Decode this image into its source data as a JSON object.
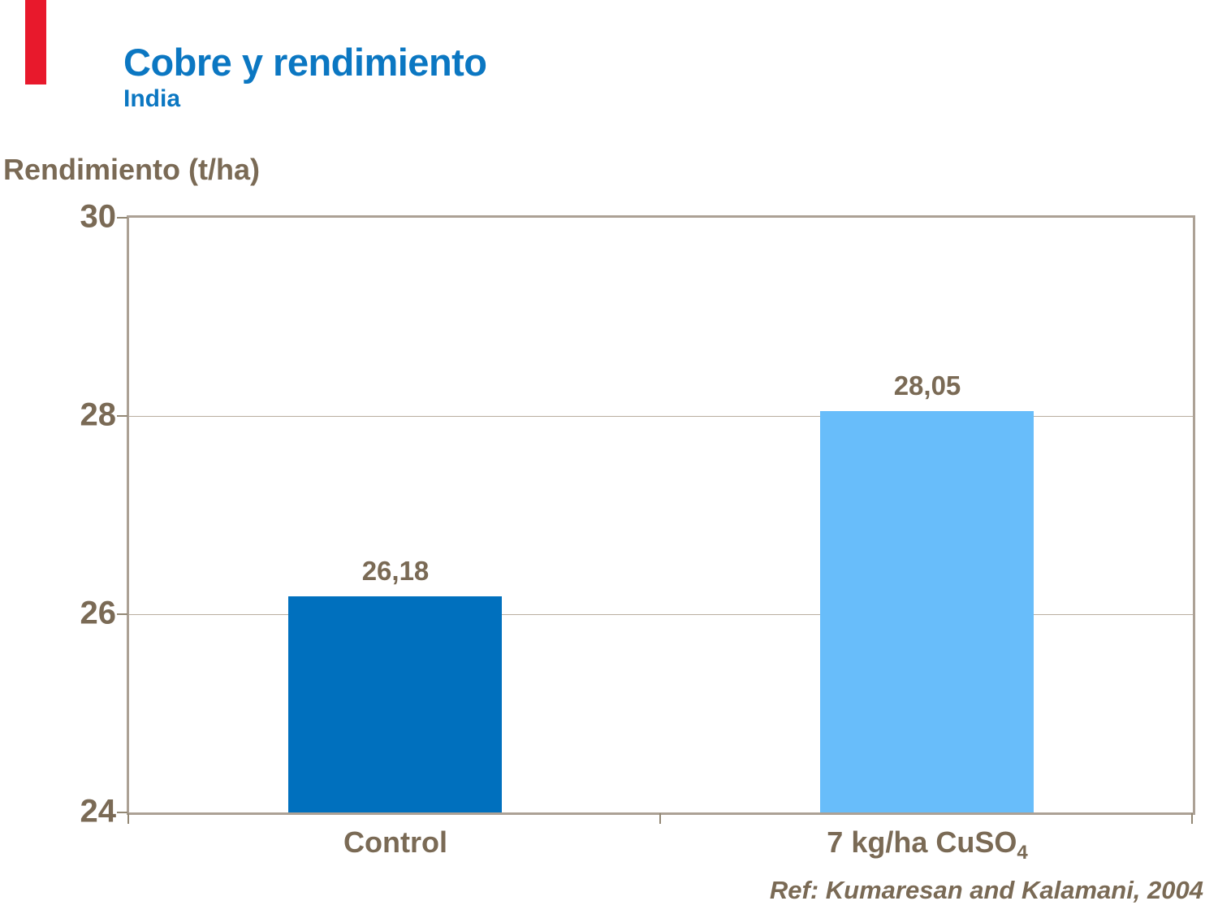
{
  "slide": {
    "title": "Cobre y rendimiento",
    "subtitle": "India",
    "axis_title": "Rendimiento (t/ha)",
    "reference": "Ref: Kumaresan and Kalamani, 2004",
    "accent_bar_color": "#e8192c"
  },
  "colors": {
    "title_blue": "#0b77c2",
    "text_brown": "#7a6a55",
    "plot_border": "#aca195",
    "gridline": "#b9ae9f",
    "tick": "#938875"
  },
  "chart_data": {
    "type": "bar",
    "title": "Cobre y rendimiento (India)",
    "xlabel": "",
    "ylabel": "Rendimiento (t/ha)",
    "categories": [
      "Control",
      "7 kg/ha CuSO4"
    ],
    "category_rich": [
      {
        "base": "Control",
        "sub": ""
      },
      {
        "base": "7 kg/ha CuSO",
        "sub": "4"
      }
    ],
    "series": [
      {
        "name": "Rendimiento (t/ha)",
        "values": [
          26.18,
          28.05
        ]
      }
    ],
    "value_labels": [
      "26,18",
      "28,05"
    ],
    "bar_colors": [
      "#0070be",
      "#68bdfa"
    ],
    "ylim": [
      24,
      30
    ],
    "yticks": [
      24,
      26,
      28,
      30
    ],
    "grid": true,
    "legend": false,
    "source": "Kumaresan and Kalamani, 2004"
  }
}
